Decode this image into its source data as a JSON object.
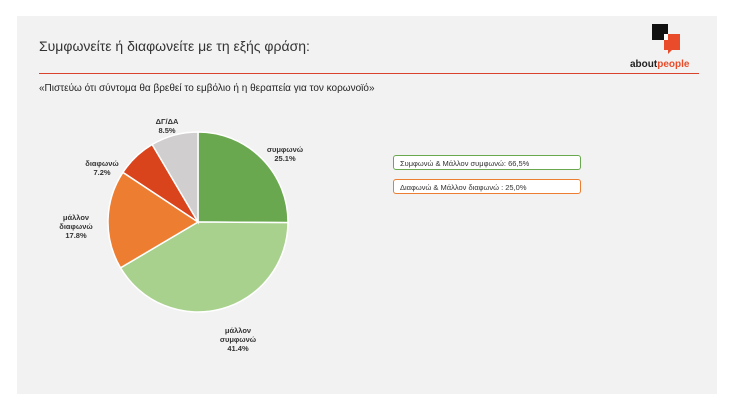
{
  "header": {
    "title": "Συμφωνείτε ή διαφωνείτε με τη εξής φράση:",
    "subtitle": "«Πιστεύω ότι σύντομα θα βρεθεί το εμβόλιο ή η θεραπεία για τον κορωνοϊό»"
  },
  "logo": {
    "text_plain": "about",
    "text_accent": "people",
    "icon": "aboutpeople-logo-icon"
  },
  "colors": {
    "brand_red": "#e84c2b",
    "agree": "#6aa84f",
    "somewhat_agree": "#a9d18e",
    "somewhat_disagree": "#ed7d31",
    "disagree": "#d9441c",
    "dk": "#d0cece"
  },
  "summary": {
    "agree_total": "Συμφωνώ & Μάλλον συμφωνώ: 66,5%",
    "disagree_total": "Διαφωνώ & Μάλλον διαφωνώ : 25,0%"
  },
  "chart_data": {
    "type": "pie",
    "title": "«Πιστεύω ότι σύντομα θα βρεθεί το εμβόλιο ή η θεραπεία για τον κορωνοϊό»",
    "slices": [
      {
        "label": [
          "συμφωνώ"
        ],
        "value": 25.1,
        "value_text": "25.1%",
        "color": "#6aa84f"
      },
      {
        "label": [
          "μάλλον",
          "συμφωνώ"
        ],
        "value": 41.4,
        "value_text": "41.4%",
        "color": "#a9d18e"
      },
      {
        "label": [
          "μάλλον",
          "διαφωνώ"
        ],
        "value": 17.8,
        "value_text": "17.8%",
        "color": "#ed7d31"
      },
      {
        "label": [
          "διαφωνώ"
        ],
        "value": 7.2,
        "value_text": "7.2%",
        "color": "#d9441c"
      },
      {
        "label": [
          "ΔΓ/ΔΑ"
        ],
        "value": 8.5,
        "value_text": "8.5%",
        "color": "#d0cece"
      }
    ]
  }
}
